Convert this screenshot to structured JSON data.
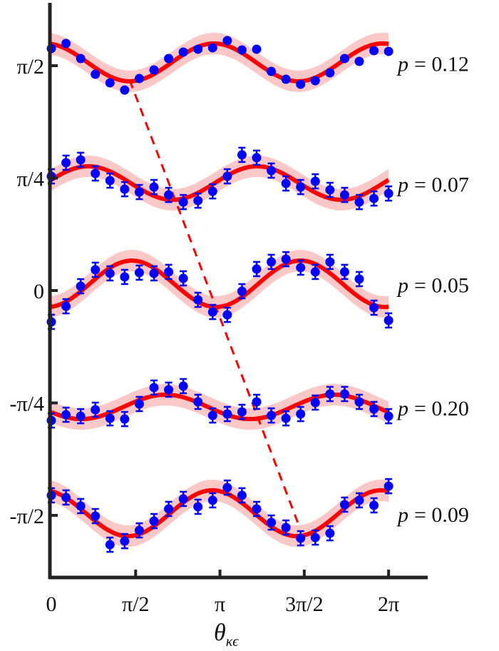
{
  "chart_data": {
    "type": "scatter",
    "title": "",
    "xlabel": "θ",
    "xlabel_sub": "κϵ",
    "ylabel": "",
    "xlim": [
      0,
      6.6
    ],
    "ylim": [
      -2.0,
      2.05
    ],
    "x_ticks": [
      {
        "value": 0,
        "label": "0"
      },
      {
        "value": 1.5708,
        "label": "π/2"
      },
      {
        "value": 3.1416,
        "label": "π"
      },
      {
        "value": 4.7124,
        "label": "3π/2"
      },
      {
        "value": 6.2832,
        "label": "2π"
      }
    ],
    "y_ticks": [
      {
        "value": 1.5708,
        "label": "π/2"
      },
      {
        "value": 0.7854,
        "label": "π/4"
      },
      {
        "value": 0,
        "label": "0"
      },
      {
        "value": -0.7854,
        "label": "-π/4"
      },
      {
        "value": -1.5708,
        "label": "-π/2"
      }
    ],
    "x_range": [
      0,
      6.2832
    ],
    "n_points": 24,
    "grid": false,
    "colors": {
      "points": "#0000ff",
      "fit": "#ff0000",
      "band": "#fbc8c8",
      "dashed": "#ff0000",
      "axis": "#222222"
    },
    "series": [
      {
        "label": "p = 0.12",
        "p_symbol": "p",
        "p_value": "= 0.12",
        "y": [
          1.691,
          1.726,
          1.621,
          1.511,
          1.451,
          1.401,
          1.481,
          1.541,
          1.621,
          1.666,
          1.686,
          1.696,
          1.746,
          1.681,
          1.686,
          1.531,
          1.476,
          1.441,
          1.466,
          1.521,
          1.621,
          1.601,
          1.676,
          1.671
        ],
        "err": 0.02,
        "fit": {
          "offset": 1.594,
          "amplitude": 0.132,
          "phase_of_max": 3.03,
          "band": 0.075
        }
      },
      {
        "label": "p = 0.07",
        "p_symbol": "p",
        "p_value": "= 0.07",
        "y": [
          0.798,
          0.893,
          0.913,
          0.818,
          0.768,
          0.708,
          0.688,
          0.723,
          0.668,
          0.618,
          0.628,
          0.693,
          0.798,
          0.948,
          0.928,
          0.838,
          0.748,
          0.723,
          0.763,
          0.703,
          0.668,
          0.618,
          0.643,
          0.678
        ],
        "err": 0.05,
        "fit": {
          "offset": 0.751,
          "amplitude": 0.117,
          "phase_of_max": 0.69,
          "band": 0.075
        }
      },
      {
        "label": "p = 0.05",
        "p_symbol": "p",
        "p_value": "= 0.05",
        "y": [
          -0.219,
          -0.11,
          0.03,
          0.145,
          0.12,
          0.095,
          0.125,
          0.12,
          0.13,
          0.085,
          -0.065,
          -0.15,
          -0.17,
          -0.005,
          0.15,
          0.2,
          0.219,
          0.16,
          0.13,
          0.2,
          0.13,
          0.08,
          -0.12,
          -0.209
        ],
        "err": 0.05,
        "fit": {
          "offset": 0.047,
          "amplitude": 0.162,
          "phase_of_max": 1.5,
          "band": 0.075
        }
      },
      {
        "label": "p = 0.20",
        "p_symbol": "p",
        "p_value": "= 0.20",
        "y": [
          -0.908,
          -0.868,
          -0.878,
          -0.833,
          -0.893,
          -0.898,
          -0.793,
          -0.678,
          -0.693,
          -0.668,
          -0.778,
          -0.873,
          -0.863,
          -0.848,
          -0.778,
          -0.873,
          -0.893,
          -0.863,
          -0.783,
          -0.723,
          -0.723,
          -0.778,
          -0.828,
          -0.878
        ],
        "err": 0.05,
        "fit": {
          "offset": -0.813,
          "amplitude": 0.085,
          "phase_of_max": 2.13,
          "band": 0.075
        }
      },
      {
        "label": "p = 0.09",
        "p_symbol": "p",
        "p_value": "= 0.09",
        "y": [
          -1.431,
          -1.446,
          -1.506,
          -1.576,
          -1.776,
          -1.751,
          -1.676,
          -1.611,
          -1.526,
          -1.456,
          -1.511,
          -1.466,
          -1.377,
          -1.431,
          -1.526,
          -1.621,
          -1.656,
          -1.731,
          -1.726,
          -1.696,
          -1.496,
          -1.466,
          -1.501,
          -1.367
        ],
        "err": 0.05,
        "fit": {
          "offset": -1.556,
          "amplitude": 0.16,
          "phase_of_max": 3.0,
          "band": 0.075
        }
      }
    ],
    "dashed_line": {
      "from": [
        1.46,
        1.47
      ],
      "to": [
        4.59,
        -1.62
      ]
    }
  }
}
